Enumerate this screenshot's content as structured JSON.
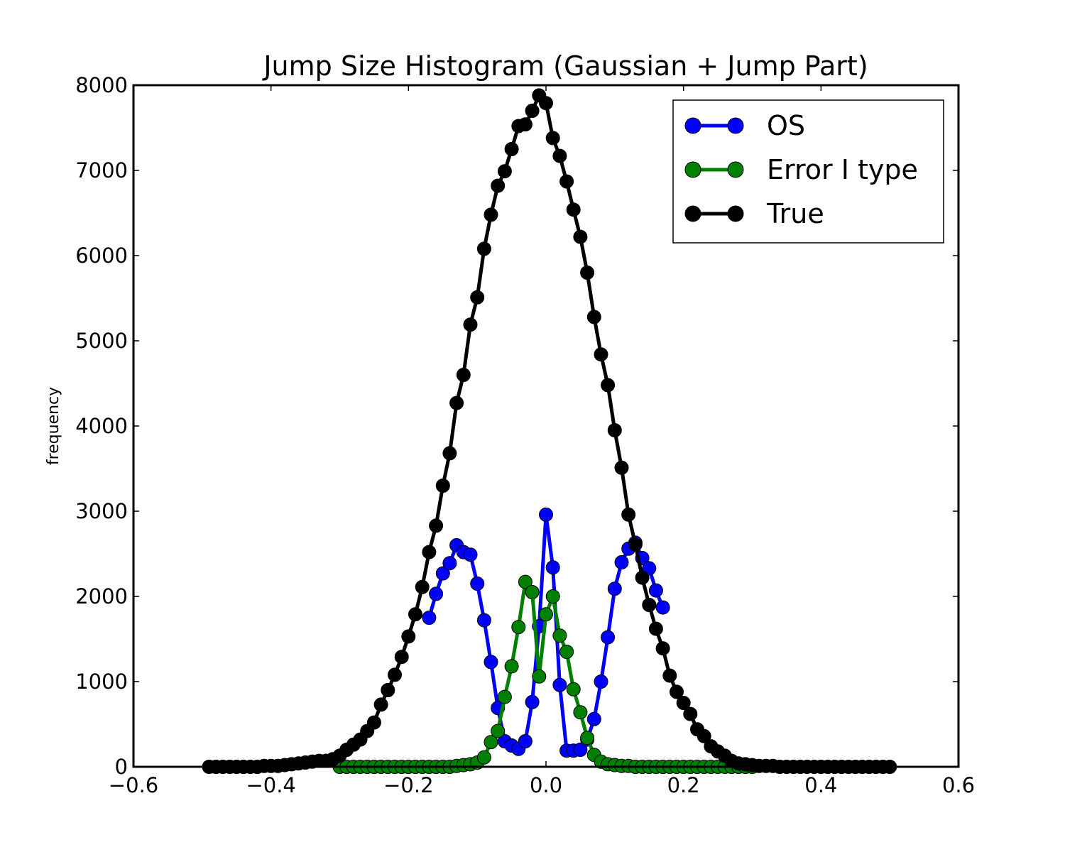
{
  "chart_data": {
    "type": "line",
    "title": "Jump Size Histogram (Gaussian + Jump Part)",
    "xlabel": "",
    "ylabel": "frequency",
    "xlim": [
      -0.6,
      0.6
    ],
    "ylim": [
      0,
      8000
    ],
    "xticks": [
      -0.6,
      -0.4,
      -0.2,
      0.0,
      0.2,
      0.4,
      0.6
    ],
    "xtick_labels": [
      "−0.6",
      "−0.4",
      "−0.2",
      "0.0",
      "0.2",
      "0.4",
      "0.6"
    ],
    "yticks": [
      0,
      1000,
      2000,
      3000,
      4000,
      5000,
      6000,
      7000,
      8000
    ],
    "ytick_labels": [
      "0",
      "1000",
      "2000",
      "3000",
      "4000",
      "5000",
      "6000",
      "7000",
      "8000"
    ],
    "grid": false,
    "legend_position": "top-right",
    "series": [
      {
        "name": "OS",
        "color": "#0000ff",
        "x": [
          -0.17,
          -0.16,
          -0.15,
          -0.14,
          -0.13,
          -0.12,
          -0.11,
          -0.1,
          -0.09,
          -0.08,
          -0.07,
          -0.06,
          -0.05,
          -0.04,
          -0.03,
          -0.02,
          -0.01,
          0.0,
          0.01,
          0.02,
          0.03,
          0.04,
          0.05,
          0.06,
          0.07,
          0.08,
          0.09,
          0.1,
          0.11,
          0.12,
          0.13,
          0.14,
          0.15,
          0.16,
          0.17
        ],
        "y": [
          1750,
          2030,
          2270,
          2390,
          2600,
          2520,
          2490,
          2150,
          1720,
          1230,
          690,
          300,
          250,
          210,
          300,
          760,
          1650,
          2960,
          2340,
          960,
          190,
          190,
          200,
          320,
          560,
          1000,
          1520,
          2090,
          2400,
          2560,
          2630,
          2450,
          2330,
          2070,
          1870
        ]
      },
      {
        "name": "Error I type",
        "color": "#008000",
        "x": [
          -0.3,
          -0.29,
          -0.28,
          -0.27,
          -0.26,
          -0.25,
          -0.24,
          -0.23,
          -0.22,
          -0.21,
          -0.2,
          -0.19,
          -0.18,
          -0.17,
          -0.16,
          -0.15,
          -0.14,
          -0.13,
          -0.12,
          -0.11,
          -0.1,
          -0.09,
          -0.08,
          -0.07,
          -0.06,
          -0.05,
          -0.04,
          -0.03,
          -0.02,
          -0.01,
          0.0,
          0.01,
          0.02,
          0.03,
          0.04,
          0.05,
          0.06,
          0.07,
          0.08,
          0.09,
          0.1,
          0.11,
          0.12,
          0.13,
          0.14,
          0.15,
          0.16,
          0.17,
          0.18,
          0.19,
          0.2,
          0.21,
          0.22,
          0.23,
          0.24,
          0.25,
          0.26,
          0.27,
          0.28,
          0.29,
          0.3
        ],
        "y": [
          0,
          0,
          0,
          0,
          0,
          0,
          0,
          0,
          0,
          0,
          0,
          0,
          0,
          0,
          0,
          0,
          0,
          10,
          20,
          30,
          50,
          110,
          290,
          420,
          820,
          1180,
          1640,
          2170,
          2050,
          1060,
          1790,
          2000,
          1540,
          1350,
          910,
          640,
          340,
          140,
          60,
          30,
          20,
          10,
          10,
          0,
          0,
          0,
          0,
          0,
          0,
          0,
          0,
          0,
          0,
          0,
          0,
          0,
          0,
          0,
          0,
          0,
          0
        ]
      },
      {
        "name": "True",
        "color": "#000000",
        "x": [
          -0.49,
          -0.48,
          -0.47,
          -0.46,
          -0.45,
          -0.44,
          -0.43,
          -0.42,
          -0.41,
          -0.4,
          -0.39,
          -0.38,
          -0.37,
          -0.36,
          -0.35,
          -0.34,
          -0.33,
          -0.32,
          -0.31,
          -0.3,
          -0.29,
          -0.28,
          -0.27,
          -0.26,
          -0.25,
          -0.24,
          -0.23,
          -0.22,
          -0.21,
          -0.2,
          -0.19,
          -0.18,
          -0.17,
          -0.16,
          -0.15,
          -0.14,
          -0.13,
          -0.12,
          -0.11,
          -0.1,
          -0.09,
          -0.08,
          -0.07,
          -0.06,
          -0.05,
          -0.04,
          -0.03,
          -0.02,
          -0.01,
          0.0,
          0.01,
          0.02,
          0.03,
          0.04,
          0.05,
          0.06,
          0.07,
          0.08,
          0.09,
          0.1,
          0.11,
          0.12,
          0.13,
          0.14,
          0.15,
          0.16,
          0.17,
          0.18,
          0.19,
          0.2,
          0.21,
          0.22,
          0.23,
          0.24,
          0.25,
          0.26,
          0.27,
          0.28,
          0.29,
          0.3,
          0.31,
          0.32,
          0.33,
          0.34,
          0.35,
          0.36,
          0.37,
          0.38,
          0.39,
          0.4,
          0.41,
          0.42,
          0.43,
          0.44,
          0.45,
          0.46,
          0.47,
          0.48,
          0.49,
          0.5
        ],
        "y": [
          0,
          0,
          0,
          0,
          0,
          0,
          0,
          0,
          10,
          10,
          10,
          20,
          30,
          40,
          50,
          60,
          70,
          70,
          90,
          130,
          200,
          260,
          320,
          420,
          520,
          730,
          900,
          1080,
          1290,
          1530,
          1790,
          2110,
          2520,
          2830,
          3300,
          3680,
          4270,
          4600,
          5190,
          5510,
          6080,
          6480,
          6820,
          6990,
          7250,
          7520,
          7540,
          7700,
          7880,
          7790,
          7380,
          7170,
          6870,
          6540,
          6220,
          5800,
          5280,
          4840,
          4480,
          3950,
          3510,
          2960,
          2610,
          2220,
          1900,
          1620,
          1390,
          1070,
          880,
          750,
          620,
          440,
          360,
          240,
          180,
          130,
          70,
          40,
          30,
          20,
          10,
          10,
          10,
          0,
          0,
          0,
          0,
          0,
          0,
          0,
          0,
          0,
          0,
          0,
          0,
          0,
          0,
          0,
          0,
          0
        ]
      }
    ]
  }
}
